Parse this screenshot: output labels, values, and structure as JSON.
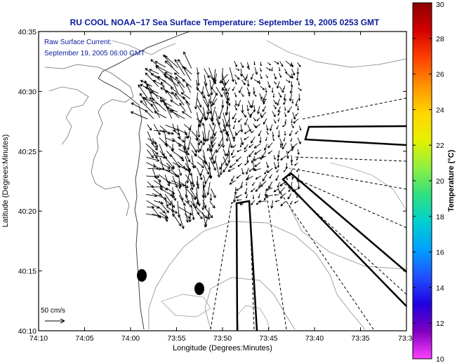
{
  "title": "RU COOL  NOAA−17  Sea Surface Temperature:  September 19, 2005 0253 GMT",
  "current_legend": {
    "line1": "Raw Surface Current:",
    "line2": "September 19, 2005 06:00 GMT"
  },
  "scale_arrow_label": "50 cm/s",
  "x_axis": {
    "label": "Longitude (Degrees:Minutes)",
    "ticks": [
      "74:10",
      "74:05",
      "74:00",
      "73:55",
      "73:50",
      "73:45",
      "73:40",
      "73:35",
      "73:3"
    ]
  },
  "y_axis": {
    "label": "Latitude (Degrees:Minutes)",
    "ticks": [
      "40:35",
      "40:30",
      "40:25",
      "40:20",
      "40:15",
      "40:10"
    ]
  },
  "colorbar": {
    "label": "Temperature (°C)",
    "ticks": [
      "30",
      "28",
      "26",
      "24",
      "22",
      "20",
      "18",
      "16",
      "14",
      "12",
      "10"
    ],
    "colors": [
      "#8b0000",
      "#d40000",
      "#ff4000",
      "#ff9000",
      "#ffd500",
      "#e8f000",
      "#90f040",
      "#30e080",
      "#00d0d0",
      "#00a0ff",
      "#2050ff",
      "#2000e0",
      "#8000c0",
      "#ff40ff"
    ]
  },
  "markers": [
    "station-marker",
    "station-marker"
  ],
  "colors": {
    "title": "#0a1a9a",
    "frame": "#000000",
    "land": "#ffffff"
  }
}
